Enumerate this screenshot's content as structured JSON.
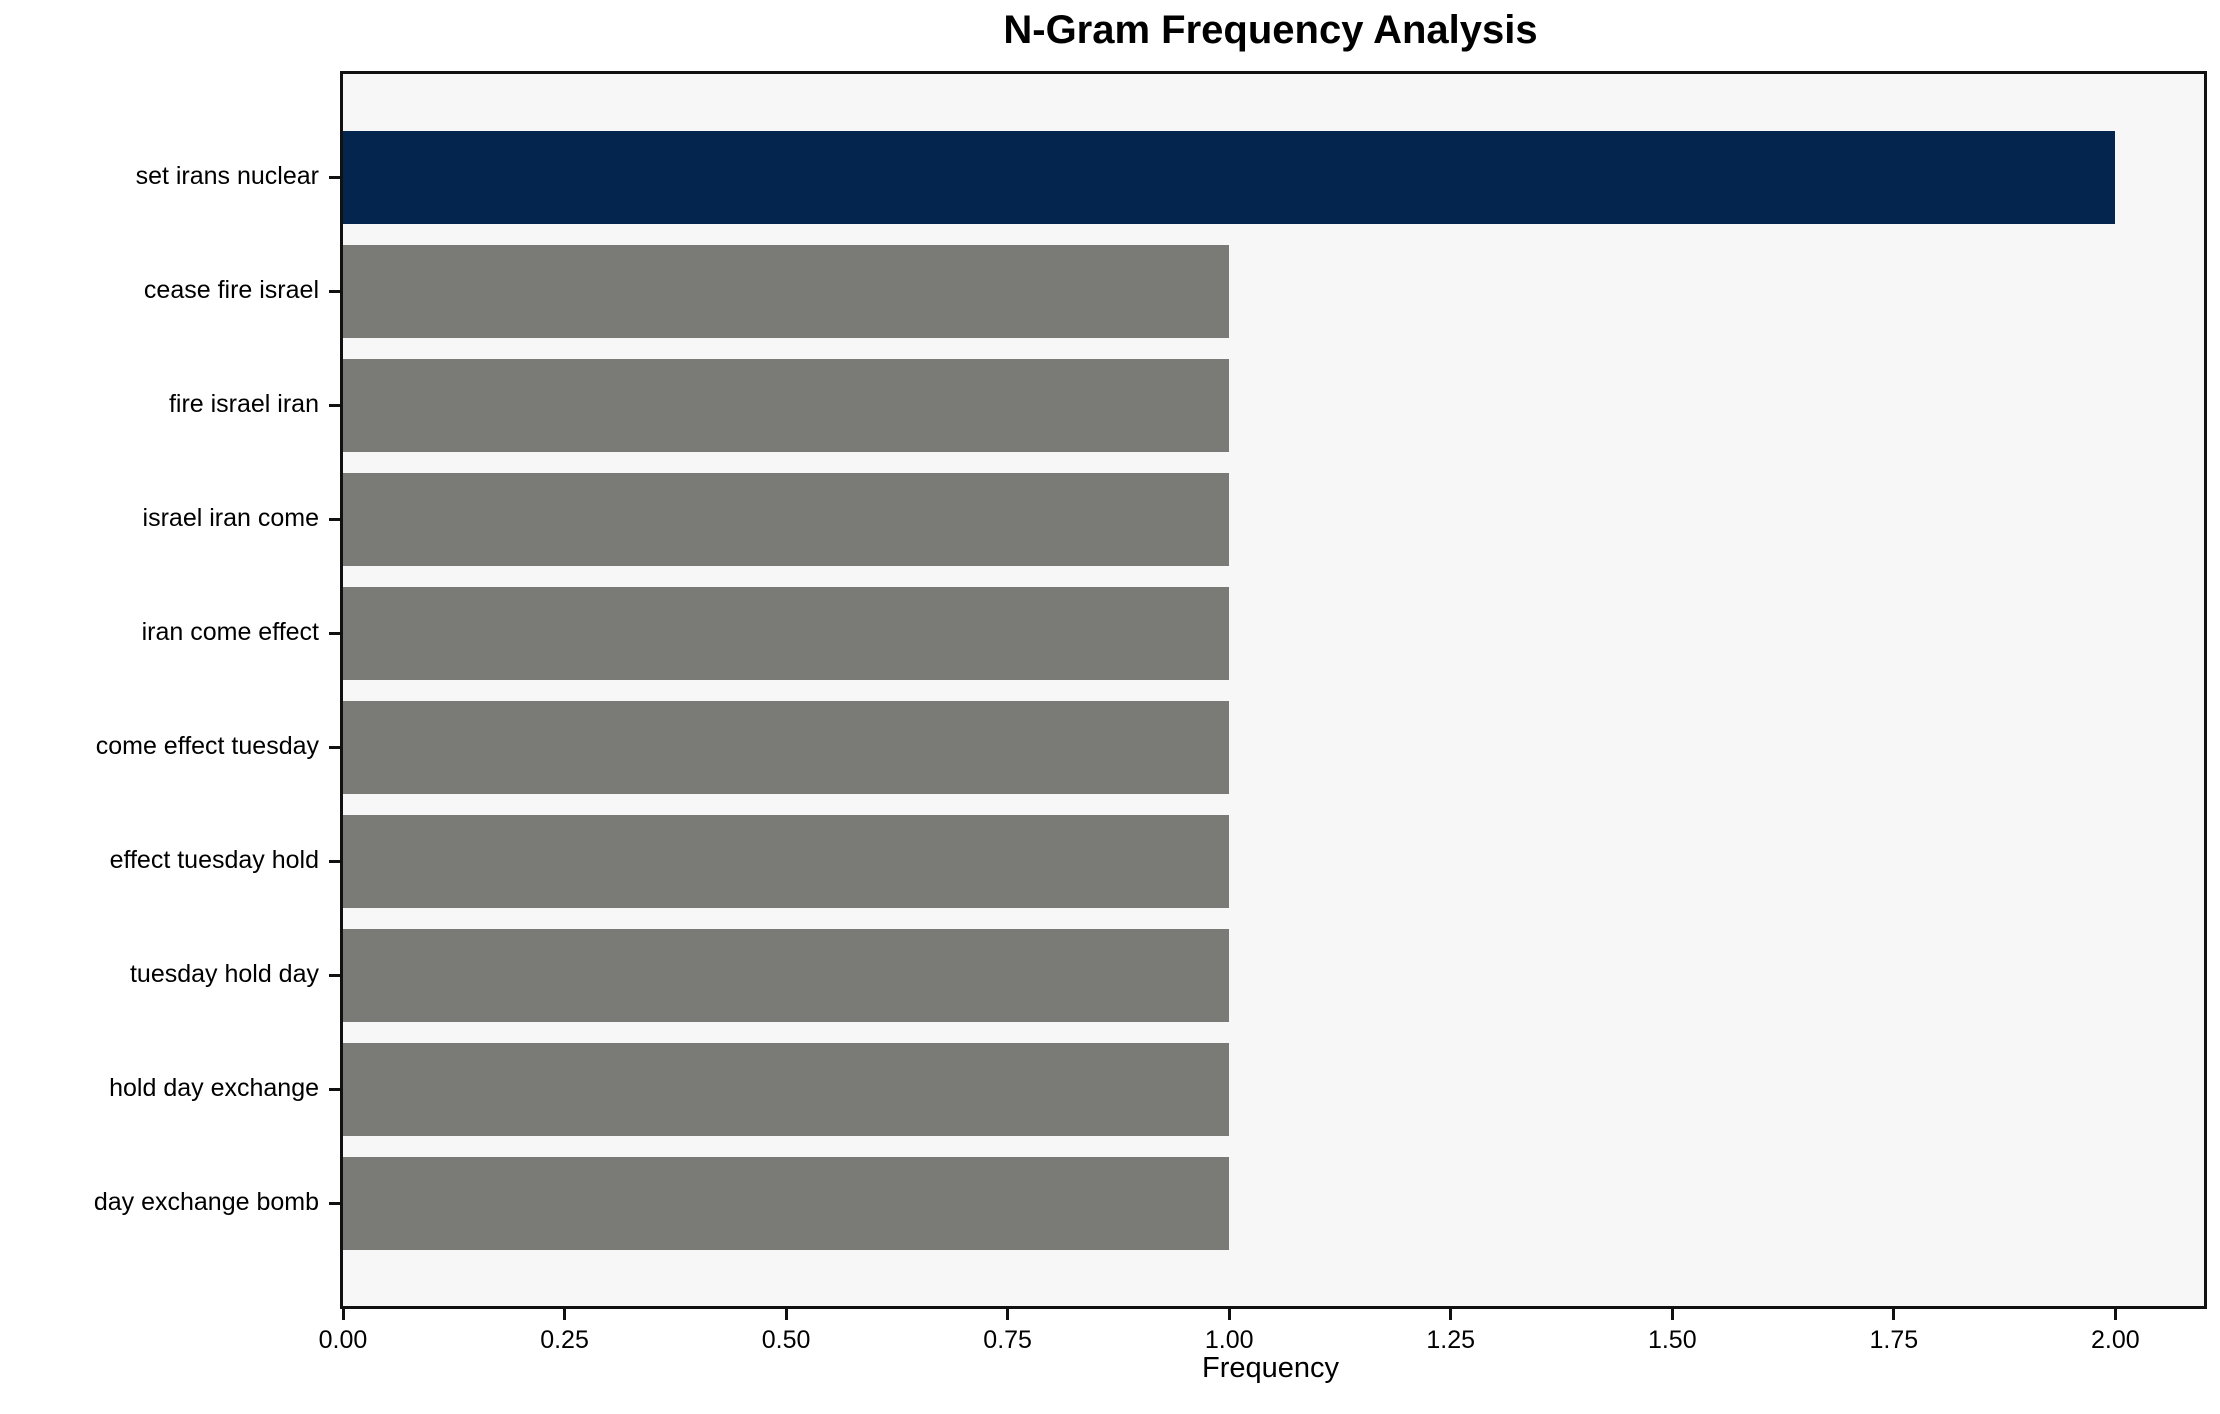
{
  "chart_data": {
    "type": "bar",
    "orientation": "horizontal",
    "title": "N-Gram Frequency Analysis",
    "xlabel": "Frequency",
    "ylabel": "",
    "categories": [
      "set irans nuclear",
      "cease fire israel",
      "fire israel iran",
      "israel iran come",
      "iran come effect",
      "come effect tuesday",
      "effect tuesday hold",
      "tuesday hold day",
      "hold day exchange",
      "day exchange bomb"
    ],
    "values": [
      2.0,
      1.0,
      1.0,
      1.0,
      1.0,
      1.0,
      1.0,
      1.0,
      1.0,
      1.0
    ],
    "bar_colors": [
      "#03254e",
      "#7a7a76",
      "#7a7a76",
      "#7a7a76",
      "#7a7a76",
      "#7a7a76",
      "#7a7a76",
      "#7a7a76",
      "#7a7a76",
      "#7a7a76"
    ],
    "xlim": [
      0,
      2.1
    ],
    "xticks": [
      0.0,
      0.25,
      0.5,
      0.75,
      1.0,
      1.25,
      1.5,
      1.75,
      2.0
    ],
    "xtick_labels": [
      "0.00",
      "0.25",
      "0.50",
      "0.75",
      "1.00",
      "1.25",
      "1.50",
      "1.75",
      "2.00"
    ],
    "grid": false,
    "legend": null,
    "colors": {
      "highlight_bar": "#03254e",
      "default_bar": "#7a7a76",
      "plot_background": "#f7f7f7",
      "figure_background": "#ffffff",
      "axis_border": "#111111",
      "text": "#000000"
    }
  }
}
